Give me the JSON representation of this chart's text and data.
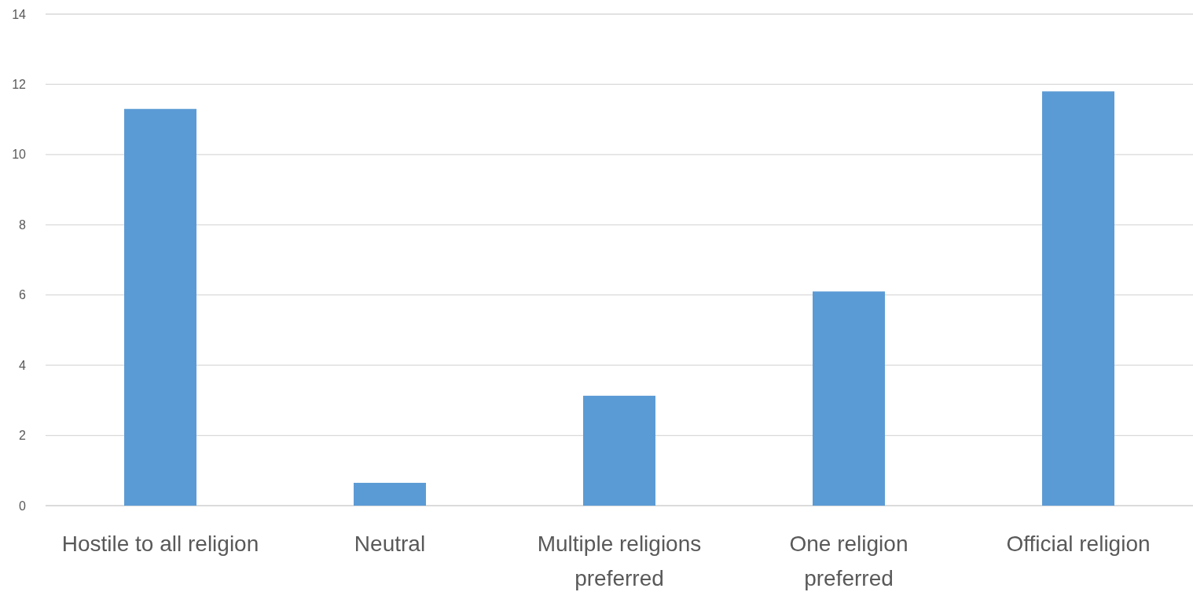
{
  "chart_data": {
    "type": "bar",
    "categories": [
      "Hostile to all religion",
      "Neutral",
      "Multiple religions preferred",
      "One religion preferred",
      "Official religion"
    ],
    "values": [
      11.3,
      0.65,
      3.13,
      6.1,
      11.8
    ],
    "color": "#5b9bd5",
    "ylim": [
      0,
      14
    ],
    "yticks": [
      0,
      2,
      4,
      6,
      8,
      10,
      12,
      14
    ],
    "grid": "y"
  }
}
